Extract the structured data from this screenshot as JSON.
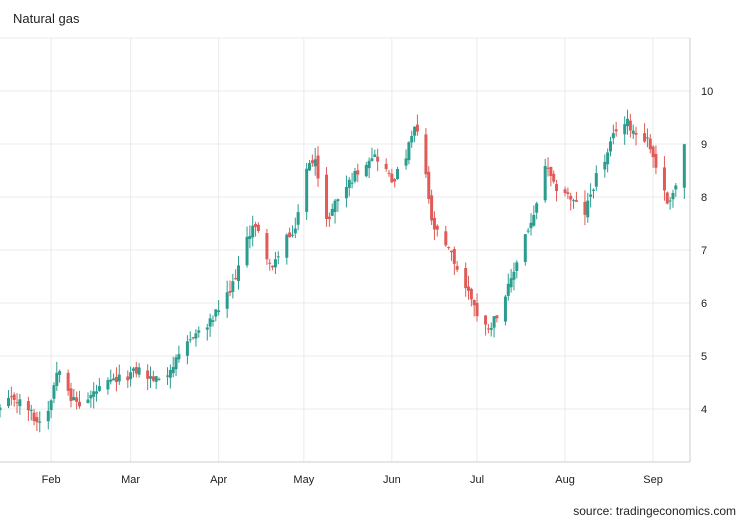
{
  "title": "Natural gas",
  "source": "source: tradingeconomics.com",
  "colors": {
    "up": "#2a9d8f",
    "down": "#e05a57",
    "grid": "#ebebeb",
    "axis": "#cccccc"
  },
  "chart_data": {
    "type": "candlestick",
    "title": "Natural gas",
    "xlabel": "",
    "ylabel": "",
    "x_range": [
      "2022-01-14",
      "2022-09-14"
    ],
    "ylim": [
      3.0,
      11.0
    ],
    "y_ticks": [
      4,
      5,
      6,
      7,
      8,
      9,
      10
    ],
    "x_ticks": [
      {
        "label": "Feb",
        "date": "2022-02-01"
      },
      {
        "label": "Mar",
        "date": "2022-03-01"
      },
      {
        "label": "Apr",
        "date": "2022-04-01"
      },
      {
        "label": "May",
        "date": "2022-05-01"
      },
      {
        "label": "Jun",
        "date": "2022-06-01"
      },
      {
        "label": "Jul",
        "date": "2022-07-01"
      },
      {
        "label": "Aug",
        "date": "2022-08-01"
      },
      {
        "label": "Sep",
        "date": "2022-09-01"
      }
    ],
    "y_axis_position": "right",
    "grid": true,
    "close_anchors": [
      [
        "2022-01-14",
        4.0
      ],
      [
        "2022-01-19",
        4.2
      ],
      [
        "2022-01-24",
        4.0
      ],
      [
        "2022-01-27",
        3.75
      ],
      [
        "2022-01-31",
        4.0
      ],
      [
        "2022-02-03",
        4.7
      ],
      [
        "2022-02-05",
        4.9
      ],
      [
        "2022-02-08",
        4.2
      ],
      [
        "2022-02-12",
        4.05
      ],
      [
        "2022-02-16",
        4.3
      ],
      [
        "2022-02-22",
        4.5
      ],
      [
        "2022-02-27",
        4.6
      ],
      [
        "2022-03-04",
        4.75
      ],
      [
        "2022-03-07",
        4.6
      ],
      [
        "2022-03-10",
        4.55
      ],
      [
        "2022-03-14",
        4.7
      ],
      [
        "2022-03-18",
        4.95
      ],
      [
        "2022-03-23",
        5.4
      ],
      [
        "2022-03-28",
        5.55
      ],
      [
        "2022-03-31",
        5.8
      ],
      [
        "2022-04-05",
        6.2
      ],
      [
        "2022-04-10",
        7.0
      ],
      [
        "2022-04-13",
        7.5
      ],
      [
        "2022-04-16",
        7.2
      ],
      [
        "2022-04-20",
        6.6
      ],
      [
        "2022-04-24",
        7.3
      ],
      [
        "2022-04-27",
        7.2
      ],
      [
        "2022-05-02",
        8.5
      ],
      [
        "2022-05-05",
        8.8
      ],
      [
        "2022-05-08",
        7.4
      ],
      [
        "2022-05-12",
        7.9
      ],
      [
        "2022-05-16",
        8.2
      ],
      [
        "2022-05-20",
        8.5
      ],
      [
        "2022-05-25",
        8.8
      ],
      [
        "2022-05-28",
        8.7
      ],
      [
        "2022-06-01",
        8.3
      ],
      [
        "2022-06-05",
        8.6
      ],
      [
        "2022-06-09",
        9.3
      ],
      [
        "2022-06-12",
        8.9
      ],
      [
        "2022-06-15",
        7.5
      ],
      [
        "2022-06-18",
        7.2
      ],
      [
        "2022-06-22",
        6.9
      ],
      [
        "2022-06-26",
        6.4
      ],
      [
        "2022-06-30",
        6.0
      ],
      [
        "2022-07-02",
        5.5
      ],
      [
        "2022-07-06",
        5.6
      ],
      [
        "2022-07-09",
        5.9
      ],
      [
        "2022-07-13",
        6.4
      ],
      [
        "2022-07-17",
        7.2
      ],
      [
        "2022-07-21",
        7.6
      ],
      [
        "2022-07-25",
        8.6
      ],
      [
        "2022-07-28",
        8.2
      ],
      [
        "2022-08-01",
        8.1
      ],
      [
        "2022-08-04",
        7.9
      ],
      [
        "2022-08-08",
        7.7
      ],
      [
        "2022-08-12",
        8.4
      ],
      [
        "2022-08-16",
        8.8
      ],
      [
        "2022-08-19",
        9.3
      ],
      [
        "2022-08-23",
        9.4
      ],
      [
        "2022-08-26",
        9.2
      ],
      [
        "2022-08-30",
        9.1
      ],
      [
        "2022-09-02",
        8.6
      ],
      [
        "2022-09-06",
        7.9
      ],
      [
        "2022-09-09",
        8.2
      ],
      [
        "2022-09-12",
        9.0
      ]
    ]
  }
}
